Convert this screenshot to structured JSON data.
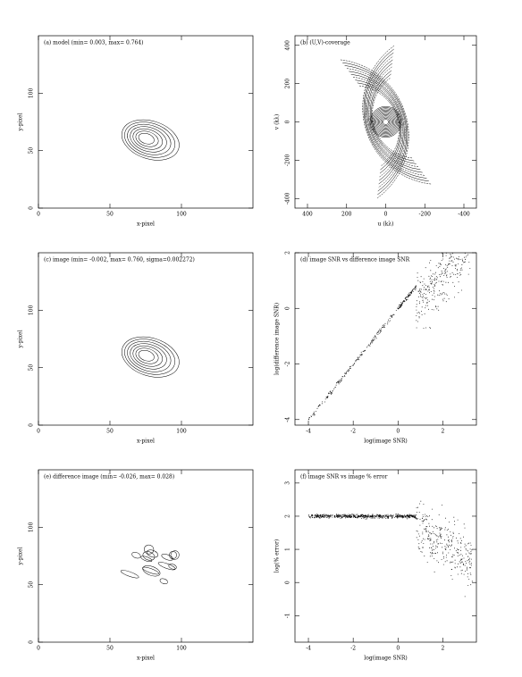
{
  "panels": [
    {
      "title": "(a) model (min= 0.003, max= 0.764)",
      "xlabel": "x-pixel",
      "ylabel": "y-pixel",
      "xlim": [
        0,
        150
      ],
      "ylim": [
        0,
        150
      ],
      "xticks": [
        0,
        50,
        100
      ],
      "yticks": [
        0,
        50,
        100
      ]
    },
    {
      "title": "(b) (U,V)-coverage",
      "xlabel": "u (kλ)",
      "ylabel": "v (kλ)",
      "xlim": [
        464,
        -464
      ],
      "ylim": [
        -450,
        450
      ],
      "xticks": [
        400,
        200,
        0,
        -200,
        -400
      ],
      "yticks": [
        -400,
        -200,
        0,
        200,
        400
      ]
    },
    {
      "title": "(c) image (min= -0.002, max= 0.760, sigma=0.002272)",
      "xlabel": "x-pixel",
      "ylabel": "y-pixel",
      "xlim": [
        0,
        150
      ],
      "ylim": [
        0,
        150
      ],
      "xticks": [
        0,
        50,
        100
      ],
      "yticks": [
        0,
        50,
        100
      ]
    },
    {
      "title": "(d) image SNR vs difference image SNR",
      "xlabel": "log(image SNR)",
      "ylabel": "log(difference image SNR)",
      "xlim": [
        -4.6,
        3.5
      ],
      "ylim": [
        -4.2,
        2
      ],
      "xticks": [
        -4,
        -2,
        0,
        2
      ],
      "yticks": [
        -4,
        -2,
        0,
        2
      ]
    },
    {
      "title": "(e) difference image (min= -0.026, max= 0.028)",
      "xlabel": "x-pixel",
      "ylabel": "y-pixel",
      "xlim": [
        0,
        150
      ],
      "ylim": [
        0,
        150
      ],
      "xticks": [
        0,
        50,
        100
      ],
      "yticks": [
        0,
        50,
        100
      ]
    },
    {
      "title": "(f) image SNR vs image % error",
      "xlabel": "log(image SNR)",
      "ylabel": "log(% error)",
      "xlim": [
        -4.6,
        3.5
      ],
      "ylim": [
        -1.8,
        3.4
      ],
      "xticks": [
        -4,
        -2,
        0,
        2
      ],
      "yticks": [
        -1,
        0,
        1,
        2,
        3
      ]
    }
  ]
}
